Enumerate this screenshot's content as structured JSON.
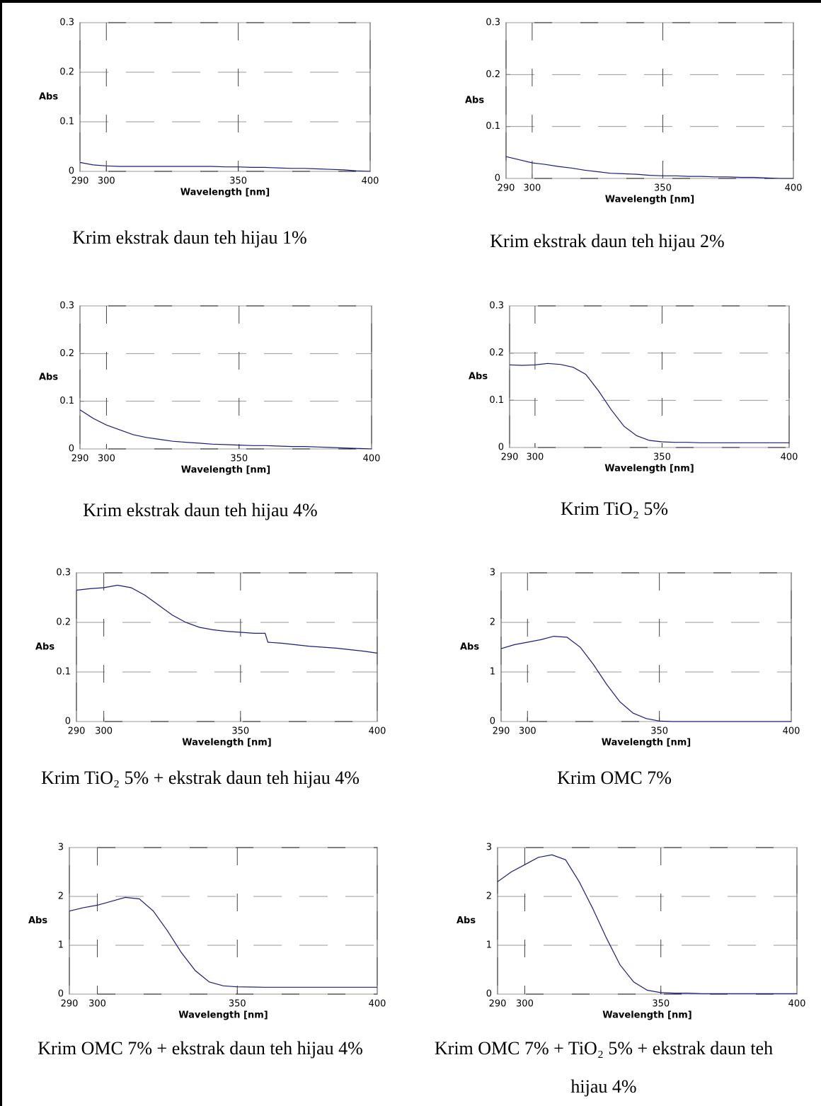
{
  "chart_data": [
    {
      "type": "line",
      "caption": "Krim ekstrak daun teh hijau 1%",
      "x_label": "Wavelength [nm]",
      "y_label": "Abs",
      "x": [
        290,
        295,
        300,
        305,
        310,
        315,
        320,
        325,
        330,
        335,
        340,
        345,
        350,
        355,
        360,
        365,
        370,
        375,
        380,
        385,
        390,
        395,
        400
      ],
      "series": [
        {
          "color": "#1c1c7a",
          "values": [
            0.018,
            0.013,
            0.011,
            0.01,
            0.01,
            0.01,
            0.01,
            0.01,
            0.01,
            0.01,
            0.01,
            0.009,
            0.009,
            0.008,
            0.008,
            0.007,
            0.006,
            0.006,
            0.005,
            0.004,
            0.003,
            0.001,
            0
          ]
        }
      ],
      "xlim": [
        290,
        400
      ],
      "ylim": [
        0,
        0.3
      ],
      "xticks": [
        290,
        300,
        350,
        400
      ],
      "yticks": [
        0,
        0.1,
        0.2,
        0.3
      ],
      "grid": true
    },
    {
      "type": "line",
      "caption": "Krim ekstrak daun teh hijau 2%",
      "x_label": "Wavelength [nm]",
      "y_label": "Abs",
      "x": [
        290,
        295,
        300,
        305,
        310,
        315,
        320,
        325,
        330,
        335,
        340,
        345,
        350,
        355,
        360,
        365,
        370,
        375,
        380,
        385,
        390,
        395,
        400
      ],
      "series": [
        {
          "color": "#1c1c7a",
          "values": [
            0.042,
            0.036,
            0.03,
            0.027,
            0.023,
            0.02,
            0.016,
            0.013,
            0.01,
            0.009,
            0.008,
            0.006,
            0.005,
            0.005,
            0.004,
            0.004,
            0.003,
            0.003,
            0.002,
            0.002,
            0.001,
            0,
            0
          ]
        }
      ],
      "xlim": [
        290,
        400
      ],
      "ylim": [
        0,
        0.3
      ],
      "xticks": [
        290,
        300,
        350,
        400
      ],
      "yticks": [
        0,
        0.1,
        0.2,
        0.3
      ],
      "grid": true
    },
    {
      "type": "line",
      "caption": "Krim ekstrak daun teh hijau 4%",
      "x_label": "Wavelength [nm]",
      "y_label": "Abs",
      "x": [
        290,
        295,
        300,
        305,
        310,
        315,
        320,
        325,
        330,
        335,
        340,
        345,
        350,
        355,
        360,
        365,
        370,
        375,
        380,
        385,
        390,
        395,
        400
      ],
      "series": [
        {
          "color": "#1c1c7a",
          "values": [
            0.082,
            0.064,
            0.05,
            0.04,
            0.03,
            0.024,
            0.02,
            0.016,
            0.014,
            0.012,
            0.01,
            0.009,
            0.008,
            0.007,
            0.007,
            0.006,
            0.005,
            0.005,
            0.004,
            0.003,
            0.002,
            0.001,
            0
          ]
        }
      ],
      "xlim": [
        290,
        400
      ],
      "ylim": [
        0,
        0.3
      ],
      "xticks": [
        290,
        300,
        350,
        400
      ],
      "yticks": [
        0,
        0.1,
        0.2,
        0.3
      ],
      "grid": true
    },
    {
      "type": "line",
      "caption": "Krim TiO₂ 5%",
      "x_label": "Wavelength [nm]",
      "y_label": "Abs",
      "x": [
        290,
        295,
        300,
        305,
        310,
        315,
        320,
        325,
        330,
        335,
        340,
        345,
        350,
        355,
        360,
        365,
        370,
        375,
        380,
        385,
        390,
        395,
        400
      ],
      "series": [
        {
          "color": "#1c1c7a",
          "values": [
            0.175,
            0.174,
            0.175,
            0.178,
            0.176,
            0.17,
            0.155,
            0.12,
            0.08,
            0.045,
            0.025,
            0.015,
            0.012,
            0.011,
            0.011,
            0.01,
            0.01,
            0.01,
            0.01,
            0.01,
            0.01,
            0.01,
            0.01
          ]
        }
      ],
      "xlim": [
        290,
        400
      ],
      "ylim": [
        0,
        0.3
      ],
      "xticks": [
        290,
        300,
        350,
        400
      ],
      "yticks": [
        0,
        0.1,
        0.2,
        0.3
      ],
      "grid": true
    },
    {
      "type": "line",
      "caption": "Krim TiO₂ 5% + ekstrak daun teh hijau 4%",
      "x_label": "Wavelength [nm]",
      "y_label": "Abs",
      "x": [
        290,
        295,
        300,
        305,
        310,
        315,
        320,
        325,
        330,
        335,
        340,
        345,
        350,
        355,
        359,
        360,
        365,
        370,
        375,
        380,
        385,
        390,
        395,
        400
      ],
      "series": [
        {
          "color": "#1c1c7a",
          "values": [
            0.265,
            0.268,
            0.27,
            0.275,
            0.27,
            0.255,
            0.235,
            0.215,
            0.2,
            0.19,
            0.185,
            0.182,
            0.18,
            0.178,
            0.178,
            0.16,
            0.158,
            0.155,
            0.152,
            0.15,
            0.148,
            0.145,
            0.142,
            0.138
          ]
        }
      ],
      "xlim": [
        290,
        400
      ],
      "ylim": [
        0,
        0.3
      ],
      "xticks": [
        290,
        300,
        350,
        400
      ],
      "yticks": [
        0,
        0.1,
        0.2,
        0.3
      ],
      "grid": true
    },
    {
      "type": "line",
      "caption": "Krim OMC 7%",
      "x_label": "Wavelength [nm]",
      "y_label": "Abs",
      "x": [
        290,
        295,
        300,
        305,
        310,
        315,
        320,
        325,
        330,
        335,
        340,
        345,
        350,
        355,
        360,
        365,
        370,
        375,
        380,
        385,
        390,
        395,
        400
      ],
      "series": [
        {
          "color": "#1c1c7a",
          "values": [
            1.47,
            1.55,
            1.6,
            1.65,
            1.72,
            1.7,
            1.5,
            1.15,
            0.75,
            0.4,
            0.17,
            0.06,
            0.01,
            0,
            0,
            0,
            0,
            0,
            0,
            0,
            0,
            0,
            0
          ]
        }
      ],
      "xlim": [
        290,
        400
      ],
      "ylim": [
        0,
        3
      ],
      "xticks": [
        290,
        300,
        350,
        400
      ],
      "yticks": [
        0,
        1,
        2,
        3
      ],
      "grid": true
    },
    {
      "type": "line",
      "caption": "Krim OMC 7% + ekstrak daun teh hijau 4%",
      "x_label": "Wavelength [nm]",
      "y_label": "Abs",
      "x": [
        290,
        295,
        300,
        305,
        310,
        315,
        320,
        325,
        330,
        335,
        340,
        345,
        350,
        355,
        360,
        365,
        370,
        375,
        380,
        385,
        390,
        395,
        400
      ],
      "series": [
        {
          "color": "#1c1c7a",
          "values": [
            1.7,
            1.77,
            1.82,
            1.9,
            1.98,
            1.95,
            1.7,
            1.3,
            0.85,
            0.48,
            0.25,
            0.17,
            0.15,
            0.145,
            0.14,
            0.14,
            0.14,
            0.14,
            0.14,
            0.14,
            0.14,
            0.14,
            0.14
          ]
        }
      ],
      "xlim": [
        290,
        400
      ],
      "ylim": [
        0,
        3
      ],
      "xticks": [
        290,
        300,
        350,
        400
      ],
      "yticks": [
        0,
        1,
        2,
        3
      ],
      "grid": true
    },
    {
      "type": "line",
      "caption": "Krim OMC 7% + TiO₂ 5% + ekstrak daun teh hijau 4%",
      "x_label": "Wavelength [nm]",
      "y_label": "Abs",
      "x": [
        290,
        295,
        300,
        305,
        310,
        315,
        320,
        325,
        330,
        335,
        340,
        345,
        350,
        355,
        360,
        365,
        370,
        375,
        380,
        385,
        390,
        395,
        400
      ],
      "series": [
        {
          "color": "#1c1c7a",
          "values": [
            2.3,
            2.5,
            2.65,
            2.8,
            2.85,
            2.75,
            2.3,
            1.75,
            1.15,
            0.6,
            0.25,
            0.08,
            0.03,
            0.02,
            0.02,
            0.01,
            0.01,
            0.01,
            0.01,
            0.01,
            0.01,
            0.01,
            0.01
          ]
        }
      ],
      "xlim": [
        290,
        400
      ],
      "ylim": [
        0,
        3
      ],
      "xticks": [
        290,
        300,
        350,
        400
      ],
      "yticks": [
        0,
        1,
        2,
        3
      ],
      "grid": true
    }
  ]
}
